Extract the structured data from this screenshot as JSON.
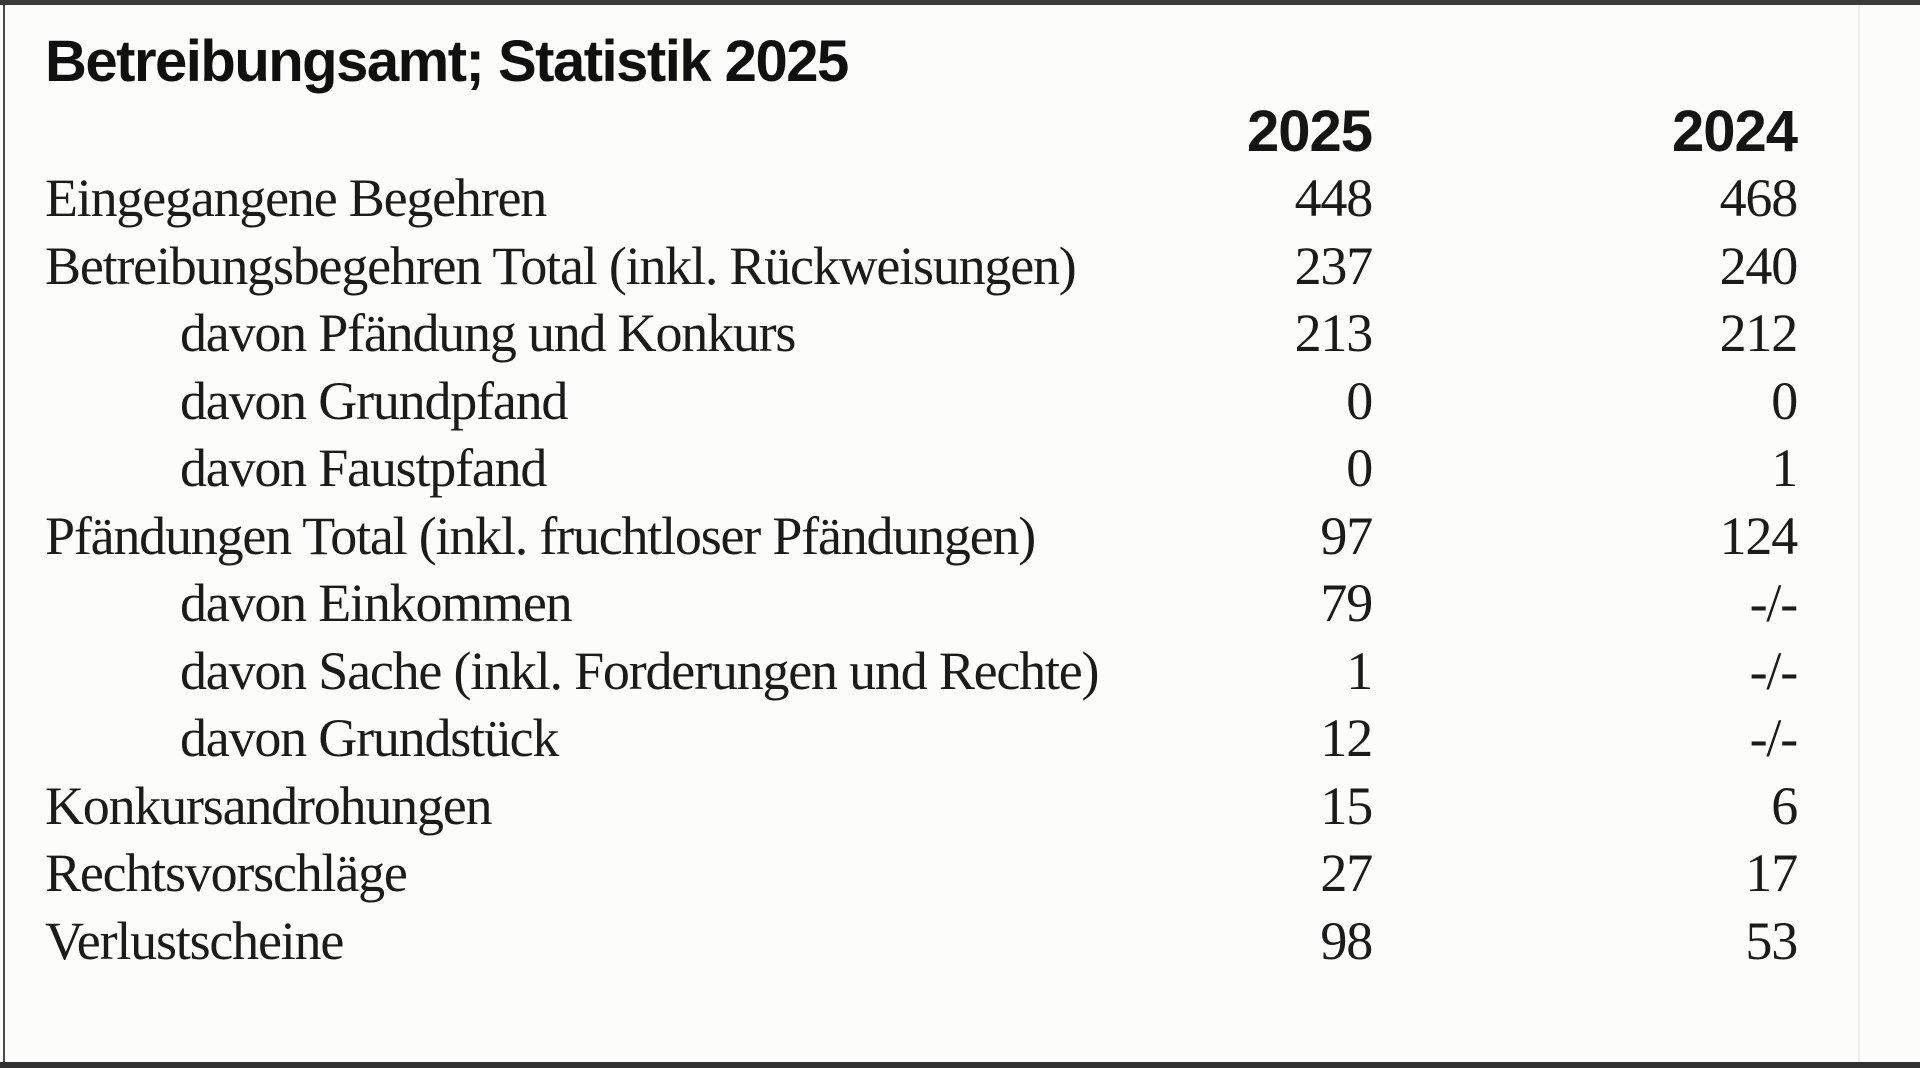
{
  "title": "Betreibungsamt; Statistik 2025",
  "table": {
    "year_headers": [
      "2025",
      "2024"
    ],
    "rows": [
      {
        "label": "Eingegangene Begehren",
        "indent": false,
        "v2025": "448",
        "v2024": "468"
      },
      {
        "label": "Betreibungsbegehren Total (inkl. Rückweisungen)",
        "indent": false,
        "v2025": "237",
        "v2024": "240"
      },
      {
        "label": "davon Pfändung und Konkurs",
        "indent": true,
        "v2025": "213",
        "v2024": "212"
      },
      {
        "label": "davon Grundpfand",
        "indent": true,
        "v2025": "0",
        "v2024": "0"
      },
      {
        "label": "davon Faustpfand",
        "indent": true,
        "v2025": "0",
        "v2024": "1"
      },
      {
        "label": "Pfändungen Total (inkl. fruchtloser Pfändungen)",
        "indent": false,
        "v2025": "97",
        "v2024": "124"
      },
      {
        "label": "davon Einkommen",
        "indent": true,
        "v2025": "79",
        "v2024": "-/-"
      },
      {
        "label": "davon Sache (inkl. Forderungen und Rechte)",
        "indent": true,
        "v2025": "1",
        "v2024": "-/-"
      },
      {
        "label": "davon Grundstück",
        "indent": true,
        "v2025": "12",
        "v2024": "-/-"
      },
      {
        "label": "Konkursandrohungen",
        "indent": false,
        "v2025": "15",
        "v2024": "6"
      },
      {
        "label": "Rechtsvorschläge",
        "indent": false,
        "v2025": "27",
        "v2024": "17"
      },
      {
        "label": "Verlustscheine",
        "indent": false,
        "v2025": "98",
        "v2024": "53"
      }
    ]
  }
}
